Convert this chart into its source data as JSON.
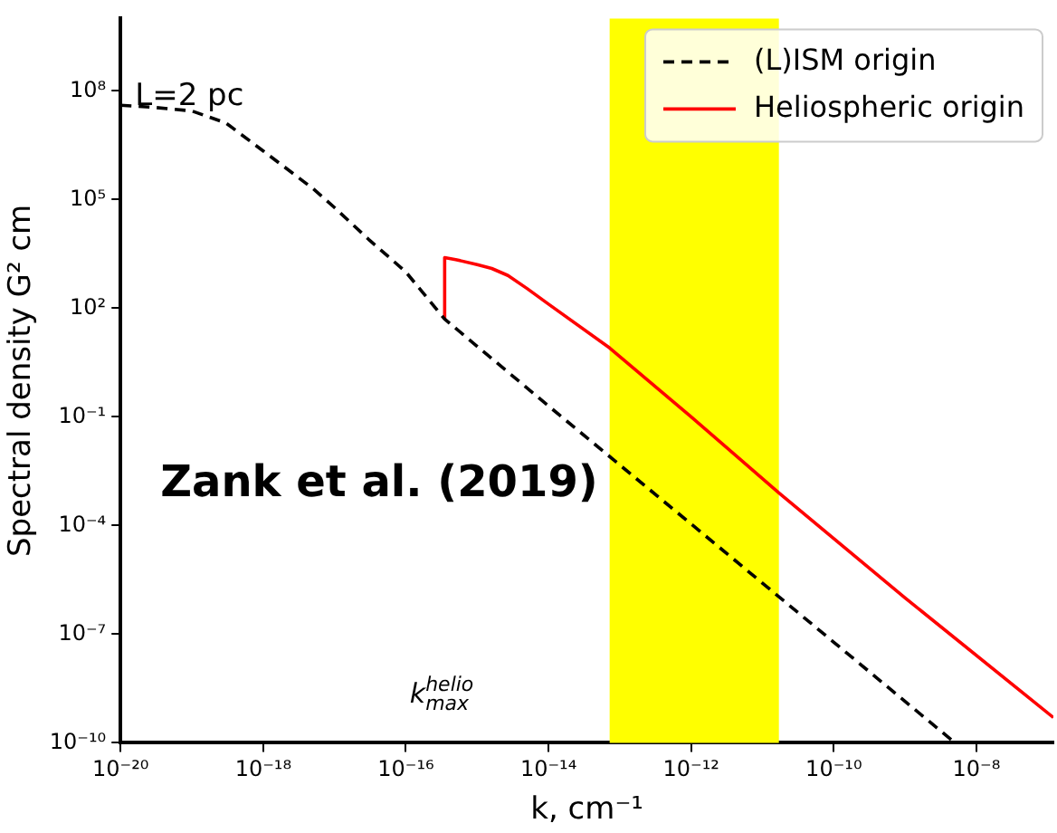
{
  "chart_data": {
    "type": "line",
    "xlabel": "k, cm⁻¹",
    "ylabel": "Spectral density G² cm",
    "log": "xy",
    "grid": false,
    "legend": "top right",
    "xlim": [
      1e-20,
      1.2e-07
    ],
    "ylim": [
      1e-10,
      10000000000.0
    ],
    "xticks": [
      {
        "value": 1e-20,
        "label": "10⁻²⁰"
      },
      {
        "value": 1e-18,
        "label": "10⁻¹⁸"
      },
      {
        "value": 1e-16,
        "label": "10⁻¹⁶"
      },
      {
        "value": 1e-14,
        "label": "10⁻¹⁴"
      },
      {
        "value": 1e-12,
        "label": "10⁻¹²"
      },
      {
        "value": 1e-10,
        "label": "10⁻¹⁰"
      },
      {
        "value": 1e-08,
        "label": "10⁻⁸"
      }
    ],
    "yticks": [
      {
        "value": 1e-10,
        "label": "10⁻¹⁰"
      },
      {
        "value": 1e-07,
        "label": "10⁻⁷"
      },
      {
        "value": 0.0001,
        "label": "10⁻⁴"
      },
      {
        "value": 0.1,
        "label": "10⁻¹"
      },
      {
        "value": 100,
        "label": "10²"
      },
      {
        "value": 100000,
        "label": "10⁵"
      },
      {
        "value": 100000000,
        "label": "10⁸"
      }
    ],
    "series": [
      {
        "name": "(L)ISM origin",
        "color": "#000000",
        "line_style": "dashed",
        "x": [
          1e-20,
          3e-20,
          1e-19,
          3e-19,
          1e-18,
          5e-18,
          1e-17,
          3e-17,
          1e-16,
          3.5e-16,
          1e-14,
          1e-12,
          1e-10,
          5e-09
        ],
        "values": [
          40000000.0,
          35000000.0,
          28000000.0,
          13000000.0,
          2200000.0,
          200000.0,
          60000.0,
          8000.0,
          1000.0,
          50,
          0.2,
          0.00011,
          6e-08,
          1e-10
        ]
      },
      {
        "name": "Heliospheric origin",
        "color": "#ff0000",
        "line_style": "solid",
        "x": [
          3.5e-16,
          3.5e-16,
          5e-16,
          1e-15,
          1.6e-15,
          2.7e-15,
          5e-15,
          1e-14,
          7.2e-14,
          1e-12,
          1.7e-11,
          1e-09,
          1.2e-07
        ],
        "values": [
          50,
          2500,
          2200,
          1600,
          1250,
          800,
          350,
          130,
          8,
          0.1,
          0.0008,
          1e-06,
          5e-10
        ]
      }
    ],
    "bands": [
      {
        "axis": "x",
        "from": 7.2e-14,
        "to": 1.7e-11,
        "color": "#ffff00"
      }
    ],
    "annotations": [
      "L=2 pc",
      "Zank et al. (2019)",
      "k$^{helio}$$_{max}$"
    ]
  }
}
